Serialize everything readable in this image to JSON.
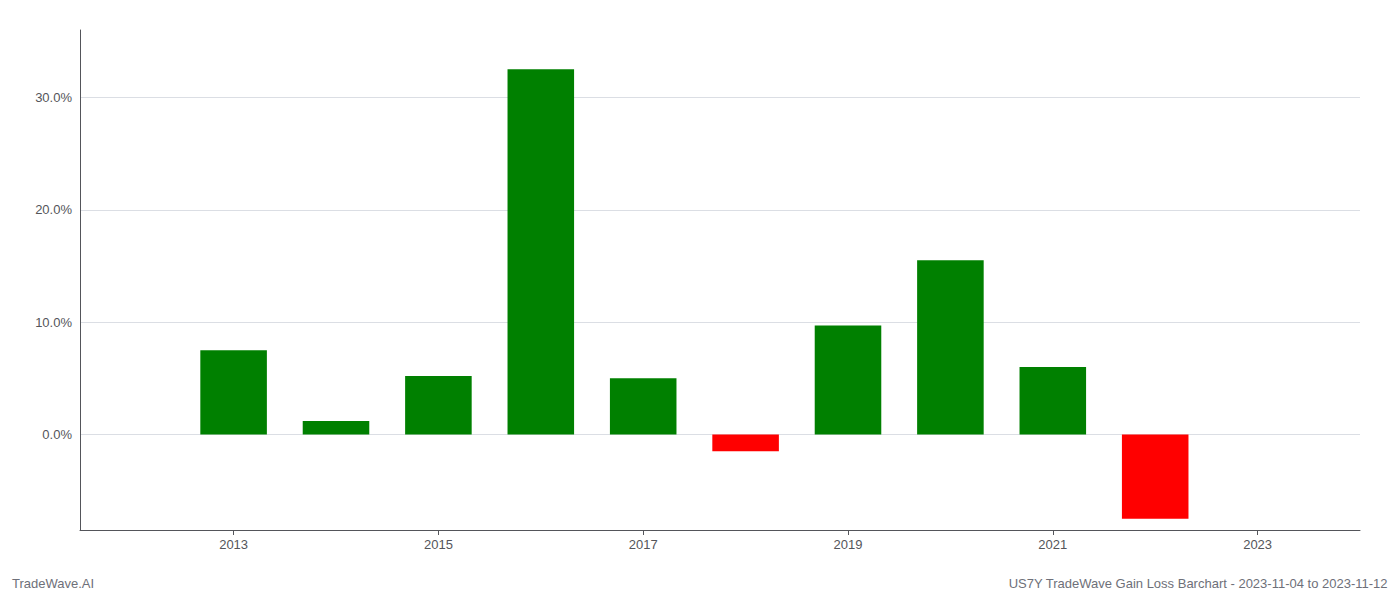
{
  "chart_data": {
    "type": "bar",
    "x": [
      2013,
      2014,
      2015,
      2016,
      2017,
      2018,
      2019,
      2020,
      2021,
      2022
    ],
    "values": [
      0.075,
      0.012,
      0.052,
      0.325,
      0.05,
      -0.015,
      0.097,
      0.155,
      0.06,
      -0.075
    ],
    "colors": [
      "#008000",
      "#008000",
      "#008000",
      "#008000",
      "#008000",
      "#ff0000",
      "#008000",
      "#008000",
      "#008000",
      "#ff0000"
    ],
    "xlim": [
      2011.5,
      2024.0
    ],
    "xticks": [
      2013,
      2015,
      2017,
      2019,
      2021,
      2023
    ],
    "ylim": [
      -0.085,
      0.36
    ],
    "yticks": [
      {
        "value": 0.0,
        "label": "0.0%"
      },
      {
        "value": 0.1,
        "label": "10.0%"
      },
      {
        "value": 0.2,
        "label": "20.0%"
      },
      {
        "value": 0.3,
        "label": "30.0%"
      }
    ],
    "grid": true,
    "annotations": [
      "TradeWave.AI",
      "US7Y TradeWave Gain Loss Barchart - 2023-11-04 to 2023-11-12"
    ]
  }
}
